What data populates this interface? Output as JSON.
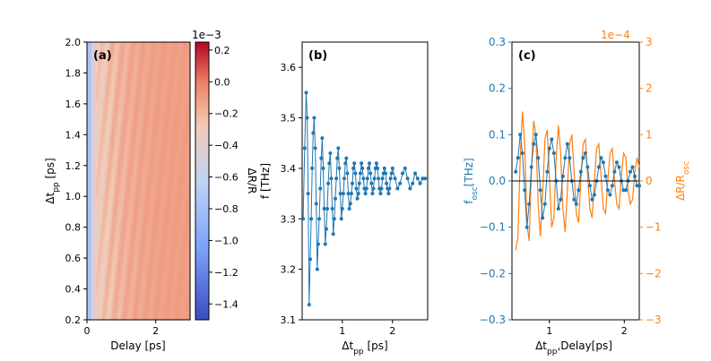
{
  "colors": {
    "blue": "#1f77b4",
    "orange": "#ff7f0e",
    "axis": "#000000",
    "cmap_low": "#3b4cc0",
    "cmap_mid": "#dddddd",
    "cmap_high": "#b40426"
  },
  "chart_data": [
    {
      "panel": "(a)",
      "type": "heatmap",
      "xlabel": "Delay [ps]",
      "ylabel": "Δt_pp [ps]",
      "x_ticks": [
        "0",
        "2"
      ],
      "y_ticks": [
        "0.2",
        "0.4",
        "0.6",
        "0.8",
        "1.0",
        "1.2",
        "1.4",
        "1.6",
        "1.8",
        "2.0"
      ],
      "xlim": [
        0,
        3.0
      ],
      "ylim": [
        0.2,
        2.0
      ],
      "colorbar": {
        "label": "ΔR/R",
        "offset_text": "1e−3",
        "ticks": [
          "0.2",
          "0.0",
          "−0.2",
          "−0.4",
          "−0.6",
          "−0.8",
          "−1.0",
          "−1.2",
          "−1.4"
        ],
        "range": [
          -1.5,
          0.25
        ]
      }
    },
    {
      "panel": "(b)",
      "type": "line",
      "xlabel": "Δt_pp [ps]",
      "ylabel": "f [THz]",
      "xlim": [
        0.2,
        2.7
      ],
      "ylim": [
        3.1,
        3.65
      ],
      "x_ticks": [
        "1",
        "2"
      ],
      "y_ticks": [
        "3.1",
        "3.2",
        "3.3",
        "3.4",
        "3.5",
        "3.6"
      ],
      "series": [
        {
          "x": [
            0.22,
            0.25,
            0.28,
            0.3,
            0.32,
            0.34,
            0.36,
            0.38,
            0.4,
            0.42,
            0.44,
            0.46,
            0.48,
            0.5,
            0.52,
            0.54,
            0.56,
            0.58,
            0.6,
            0.62,
            0.64,
            0.66,
            0.68,
            0.7,
            0.72,
            0.74,
            0.76,
            0.78,
            0.8,
            0.82,
            0.84,
            0.86,
            0.88,
            0.9,
            0.92,
            0.94,
            0.96,
            0.98,
            1.0,
            1.02,
            1.04,
            1.06,
            1.08,
            1.1,
            1.12,
            1.14,
            1.16,
            1.18,
            1.2,
            1.22,
            1.24,
            1.26,
            1.28,
            1.3,
            1.32,
            1.34,
            1.36,
            1.38,
            1.4,
            1.42,
            1.44,
            1.46,
            1.48,
            1.5,
            1.52,
            1.54,
            1.56,
            1.58,
            1.6,
            1.62,
            1.64,
            1.66,
            1.68,
            1.7,
            1.72,
            1.74,
            1.76,
            1.78,
            1.8,
            1.82,
            1.84,
            1.86,
            1.88,
            1.9,
            1.92,
            1.94,
            1.96,
            1.98,
            2.0,
            2.05,
            2.1,
            2.15,
            2.2,
            2.25,
            2.3,
            2.35,
            2.4,
            2.45,
            2.5,
            2.55,
            2.6,
            2.65
          ],
          "y": [
            3.3,
            3.44,
            3.55,
            3.5,
            3.35,
            3.13,
            3.22,
            3.3,
            3.4,
            3.47,
            3.5,
            3.44,
            3.33,
            3.2,
            3.25,
            3.3,
            3.36,
            3.42,
            3.46,
            3.4,
            3.32,
            3.25,
            3.28,
            3.32,
            3.37,
            3.41,
            3.43,
            3.38,
            3.32,
            3.27,
            3.3,
            3.34,
            3.38,
            3.42,
            3.44,
            3.4,
            3.35,
            3.3,
            3.32,
            3.35,
            3.38,
            3.41,
            3.42,
            3.39,
            3.35,
            3.32,
            3.33,
            3.35,
            3.37,
            3.4,
            3.41,
            3.39,
            3.36,
            3.34,
            3.35,
            3.37,
            3.39,
            3.41,
            3.4,
            3.38,
            3.36,
            3.35,
            3.36,
            3.38,
            3.4,
            3.41,
            3.39,
            3.37,
            3.35,
            3.36,
            3.38,
            3.4,
            3.41,
            3.4,
            3.38,
            3.36,
            3.35,
            3.36,
            3.38,
            3.39,
            3.4,
            3.39,
            3.37,
            3.36,
            3.35,
            3.36,
            3.38,
            3.39,
            3.4,
            3.38,
            3.36,
            3.37,
            3.39,
            3.4,
            3.38,
            3.36,
            3.37,
            3.39,
            3.38,
            3.37,
            3.38,
            3.38
          ]
        }
      ]
    },
    {
      "panel": "(c)",
      "type": "line",
      "xlabel": "Δt_pp,Delay[ps]",
      "ylabel": "f_osc[THz]",
      "ylabel_right": "ΔR/R_osc",
      "right_offset_text": "1e−4",
      "xlim": [
        0.5,
        2.2
      ],
      "ylim": [
        -0.3,
        0.3
      ],
      "ylim_right": [
        -3,
        3
      ],
      "x_ticks": [
        "1",
        "2"
      ],
      "y_ticks": [
        "−0.3",
        "−0.2",
        "−0.1",
        "0.0",
        "0.1",
        "0.2",
        "0.3"
      ],
      "y_ticks_right": [
        "−3",
        "−2",
        "−1",
        "0",
        "1",
        "2",
        "3"
      ],
      "hline": 0,
      "series": [
        {
          "axis": "left",
          "x": [
            0.55,
            0.58,
            0.61,
            0.64,
            0.67,
            0.7,
            0.73,
            0.76,
            0.79,
            0.82,
            0.85,
            0.88,
            0.91,
            0.94,
            0.97,
            1.0,
            1.03,
            1.06,
            1.09,
            1.12,
            1.15,
            1.18,
            1.21,
            1.24,
            1.27,
            1.3,
            1.33,
            1.36,
            1.39,
            1.42,
            1.45,
            1.48,
            1.51,
            1.54,
            1.57,
            1.6,
            1.63,
            1.66,
            1.69,
            1.72,
            1.75,
            1.78,
            1.81,
            1.84,
            1.87,
            1.9,
            1.93,
            1.96,
            1.99,
            2.02,
            2.05,
            2.08,
            2.11,
            2.14,
            2.17,
            2.2
          ],
          "y": [
            0.02,
            0.05,
            0.1,
            0.06,
            -0.02,
            -0.1,
            -0.05,
            0.03,
            0.08,
            0.1,
            0.05,
            -0.02,
            -0.08,
            -0.05,
            0.02,
            0.07,
            0.09,
            0.06,
            0.0,
            -0.06,
            -0.04,
            0.01,
            0.05,
            0.08,
            0.05,
            0.0,
            -0.04,
            -0.05,
            -0.02,
            0.02,
            0.05,
            0.06,
            0.03,
            -0.01,
            -0.04,
            -0.03,
            0.0,
            0.03,
            0.05,
            0.04,
            0.01,
            -0.02,
            -0.03,
            -0.01,
            0.02,
            0.04,
            0.03,
            0.0,
            -0.02,
            -0.02,
            0.0,
            0.02,
            0.03,
            0.01,
            -0.01,
            -0.01
          ]
        },
        {
          "axis": "right",
          "x": [
            0.55,
            0.58,
            0.61,
            0.64,
            0.67,
            0.7,
            0.73,
            0.76,
            0.79,
            0.82,
            0.85,
            0.88,
            0.91,
            0.94,
            0.97,
            1.0,
            1.03,
            1.06,
            1.09,
            1.12,
            1.15,
            1.18,
            1.21,
            1.24,
            1.27,
            1.3,
            1.33,
            1.36,
            1.39,
            1.42,
            1.45,
            1.48,
            1.51,
            1.54,
            1.57,
            1.6,
            1.63,
            1.66,
            1.69,
            1.72,
            1.75,
            1.78,
            1.81,
            1.84,
            1.87,
            1.9,
            1.93,
            1.96,
            1.99,
            2.02,
            2.05,
            2.08,
            2.11,
            2.14,
            2.17,
            2.2
          ],
          "y": [
            -1.5,
            -1.2,
            0.5,
            1.5,
            0.8,
            -0.9,
            -1.3,
            0.2,
            1.3,
            1.0,
            -0.5,
            -1.2,
            -0.3,
            0.9,
            1.1,
            0.1,
            -1.0,
            -0.8,
            0.5,
            1.2,
            0.6,
            -0.6,
            -1.1,
            -0.2,
            0.8,
            1.0,
            0.2,
            -0.7,
            -0.9,
            0.0,
            0.8,
            0.9,
            0.1,
            -0.6,
            -0.8,
            0.0,
            0.7,
            0.8,
            0.1,
            -0.6,
            -0.7,
            0.0,
            0.6,
            0.7,
            0.0,
            -0.5,
            -0.6,
            0.1,
            0.6,
            0.5,
            -0.2,
            -0.5,
            -0.4,
            0.2,
            0.5,
            0.3
          ]
        }
      ]
    }
  ]
}
